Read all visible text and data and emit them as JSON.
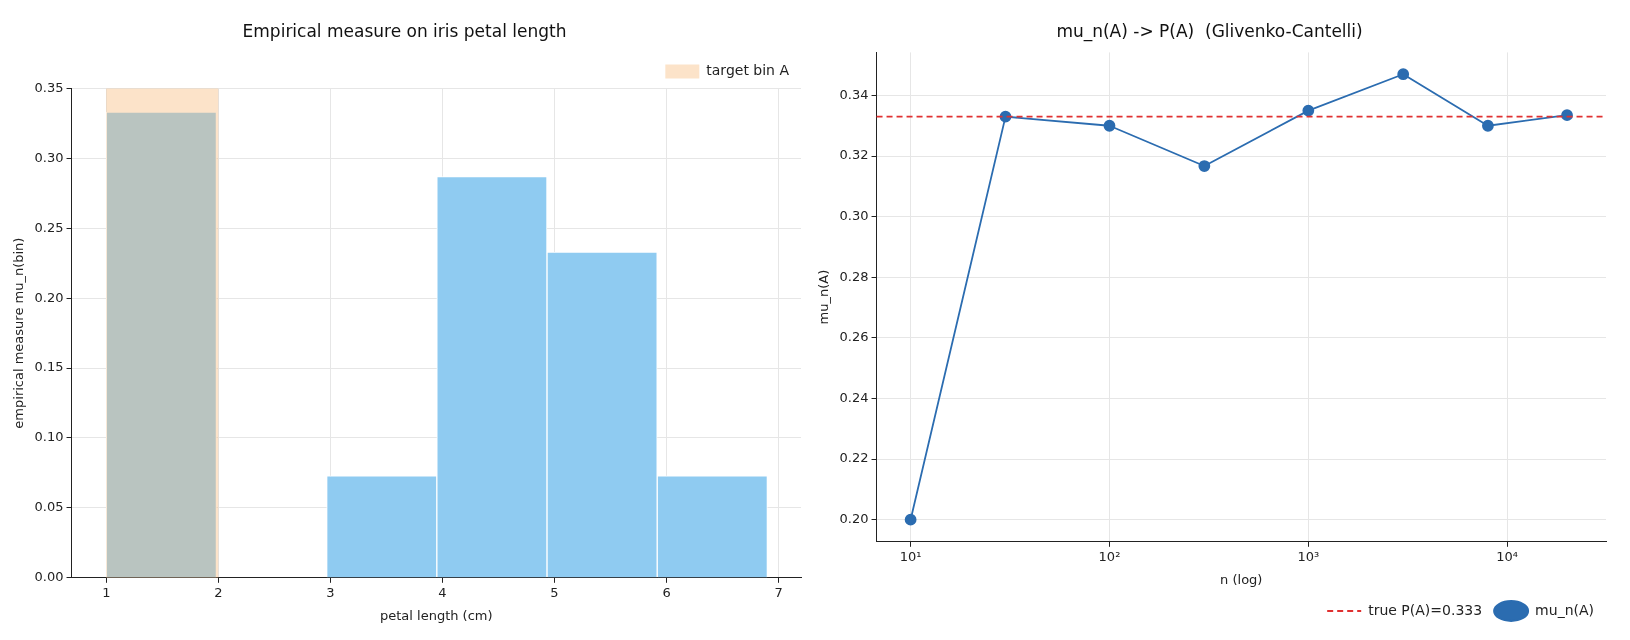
{
  "chart_data": [
    {
      "type": "histogram",
      "title": "Empirical measure on iris petal length",
      "xlabel": "petal length (cm)",
      "ylabel": "empirical measure mu_n(bin)",
      "bins": [
        1.0,
        1.983,
        2.967,
        3.95,
        4.933,
        5.917,
        6.9
      ],
      "values": [
        0.333,
        0,
        0.073,
        0.287,
        0.233,
        0.073
      ],
      "color": "#8fcbf1",
      "bands": [
        {
          "axis": "x",
          "from": 1,
          "to": 2,
          "label": "target bin A",
          "color": "#f8b878"
        }
      ],
      "xlim": [
        0.69,
        7.2
      ],
      "xticks": [
        1,
        2,
        3,
        4,
        5,
        6,
        7
      ],
      "ylim": [
        0,
        0.35
      ],
      "yticks": [
        {
          "value": 0,
          "label": "0.00"
        },
        0.05,
        {
          "value": 0.1,
          "label": "0.10"
        },
        0.15,
        {
          "value": 0.2,
          "label": "0.20"
        },
        0.25,
        {
          "value": 0.3,
          "label": "0.30"
        },
        0.35
      ],
      "grid": true,
      "legend": "top right"
    },
    {
      "type": "line",
      "title": "mu_n(A) -> P(A)  (Glivenko-Cantelli)",
      "xlabel": "n (log)",
      "ylabel": "mu_n(A)",
      "x": [
        10,
        30,
        100,
        300,
        1000,
        3000,
        8000,
        20000
      ],
      "series": [
        {
          "name": "mu_n(A)",
          "color": "#2b6cb0",
          "values": [
            0.2,
            0.333,
            0.33,
            0.3167,
            0.335,
            0.347,
            0.33,
            0.3335
          ]
        }
      ],
      "ref_lines": [
        {
          "axis": "y",
          "value": 0.333,
          "label": "true P(A)=0.333",
          "color": "#e03131",
          "line_style": "dashed"
        }
      ],
      "log": "x",
      "marker": "circle",
      "xlim": [
        6.74,
        31400
      ],
      "xticks": [
        {
          "value": 10,
          "label": "10¹"
        },
        {
          "value": 100,
          "label": "10²"
        },
        {
          "value": 1000,
          "label": "10³"
        },
        {
          "value": 10000,
          "label": "10⁴"
        }
      ],
      "ylim": [
        0.1927,
        0.3542
      ],
      "yticks": [
        {
          "value": 0.2,
          "label": "0.20"
        },
        0.22,
        0.24,
        0.26,
        0.28,
        {
          "value": 0.3,
          "label": "0.30"
        },
        0.32,
        0.34
      ],
      "grid": true,
      "legend": "bottom right"
    }
  ]
}
